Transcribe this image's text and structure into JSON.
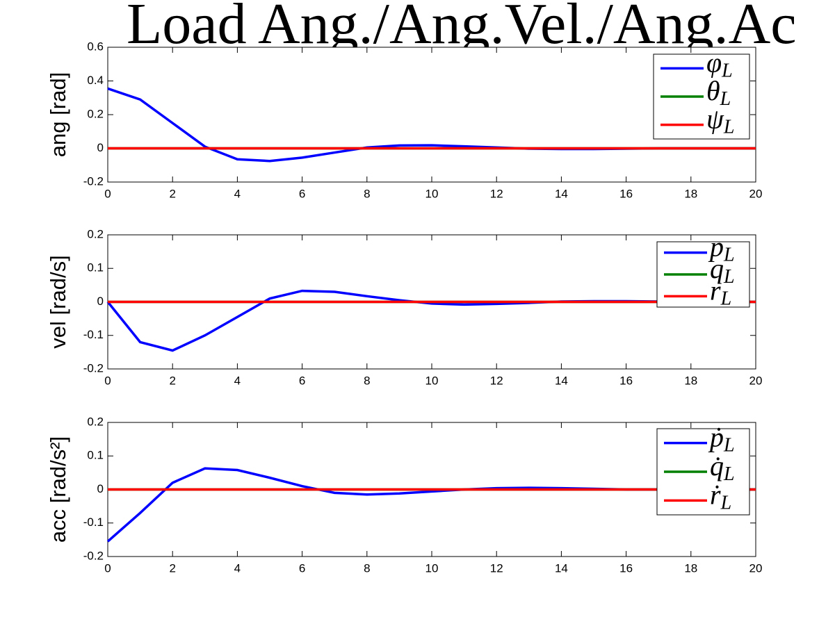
{
  "chart_data": [
    {
      "type": "line",
      "title": "Load Ang./Ang.Vel./Ang.Ac",
      "ylabel": "ang [rad]",
      "x": [
        0,
        1,
        2,
        3,
        4,
        5,
        6,
        7,
        8,
        9,
        10,
        11,
        12,
        13,
        14,
        15,
        16,
        17,
        18,
        19,
        20
      ],
      "xlim": [
        0,
        20
      ],
      "xticks": [
        0,
        2,
        4,
        6,
        8,
        10,
        12,
        14,
        16,
        18,
        20
      ],
      "ylim": [
        -0.2,
        0.6
      ],
      "yticks": [
        -0.2,
        0,
        0.2,
        0.4,
        0.6
      ],
      "legend": "northeast",
      "series": [
        {
          "name": "φL",
          "color": "#0000ff",
          "values": [
            0.355,
            0.29,
            0.15,
            0.01,
            -0.065,
            -0.075,
            -0.055,
            -0.025,
            0.005,
            0.017,
            0.018,
            0.012,
            0.005,
            -0.002,
            -0.004,
            -0.004,
            -0.002,
            0,
            0,
            0,
            0
          ]
        },
        {
          "name": "θL",
          "color": "#008000",
          "values": [
            0,
            0,
            0,
            0,
            0,
            0,
            0,
            0,
            0,
            0,
            0,
            0,
            0,
            0,
            0,
            0,
            0,
            0,
            0,
            0,
            0
          ]
        },
        {
          "name": "ψL",
          "color": "#ff0000",
          "values": [
            0,
            0,
            0,
            0,
            0,
            0,
            0,
            0,
            0,
            0,
            0,
            0,
            0,
            0,
            0,
            0,
            0,
            0,
            0,
            0,
            0
          ]
        }
      ]
    },
    {
      "type": "line",
      "ylabel": "vel [rad/s]",
      "x": [
        0,
        1,
        2,
        3,
        4,
        5,
        6,
        7,
        8,
        9,
        10,
        11,
        12,
        13,
        14,
        15,
        16,
        17,
        18,
        19,
        20
      ],
      "xlim": [
        0,
        20
      ],
      "xticks": [
        0,
        2,
        4,
        6,
        8,
        10,
        12,
        14,
        16,
        18,
        20
      ],
      "ylim": [
        -0.2,
        0.2
      ],
      "yticks": [
        -0.2,
        -0.1,
        0,
        0.1,
        0.2
      ],
      "legend": "northeast",
      "series": [
        {
          "name": "pL",
          "color": "#0000ff",
          "values": [
            0,
            -0.12,
            -0.145,
            -0.1,
            -0.045,
            0.01,
            0.033,
            0.03,
            0.017,
            0.005,
            -0.005,
            -0.008,
            -0.006,
            -0.003,
            0.001,
            0.002,
            0.002,
            0.001,
            0,
            0,
            0
          ]
        },
        {
          "name": "qL",
          "color": "#008000",
          "values": [
            0,
            0,
            0,
            0,
            0,
            0,
            0,
            0,
            0,
            0,
            0,
            0,
            0,
            0,
            0,
            0,
            0,
            0,
            0,
            0,
            0
          ]
        },
        {
          "name": "rL",
          "color": "#ff0000",
          "values": [
            0,
            0,
            0,
            0,
            0,
            0,
            0,
            0,
            0,
            0,
            0,
            0,
            0,
            0,
            0,
            0,
            0,
            0,
            0,
            0,
            0
          ]
        }
      ]
    },
    {
      "type": "line",
      "ylabel": "acc [rad/s²]",
      "x": [
        0,
        1,
        2,
        3,
        4,
        5,
        6,
        7,
        8,
        9,
        10,
        11,
        12,
        13,
        14,
        15,
        16,
        17,
        18,
        19,
        20
      ],
      "xlim": [
        0,
        20
      ],
      "xticks": [
        0,
        2,
        4,
        6,
        8,
        10,
        12,
        14,
        16,
        18,
        20
      ],
      "ylim": [
        -0.2,
        0.2
      ],
      "yticks": [
        -0.2,
        -0.1,
        0,
        0.1,
        0.2
      ],
      "legend": "northeast",
      "series": [
        {
          "name": "ṗL",
          "color": "#0000ff",
          "values": [
            -0.155,
            -0.07,
            0.02,
            0.063,
            0.058,
            0.035,
            0.01,
            -0.01,
            -0.015,
            -0.012,
            -0.006,
            0,
            0.004,
            0.005,
            0.004,
            0.002,
            0,
            0,
            0,
            0,
            0
          ]
        },
        {
          "name": "q̇L",
          "color": "#008000",
          "values": [
            0,
            0,
            0,
            0,
            0,
            0,
            0,
            0,
            0,
            0,
            0,
            0,
            0,
            0,
            0,
            0,
            0,
            0,
            0,
            0,
            0
          ]
        },
        {
          "name": "ṙL",
          "color": "#ff0000",
          "values": [
            0,
            0,
            0,
            0,
            0,
            0,
            0,
            0,
            0,
            0,
            0,
            0,
            0,
            0,
            0,
            0,
            0,
            0,
            0,
            0,
            0
          ]
        }
      ]
    }
  ]
}
